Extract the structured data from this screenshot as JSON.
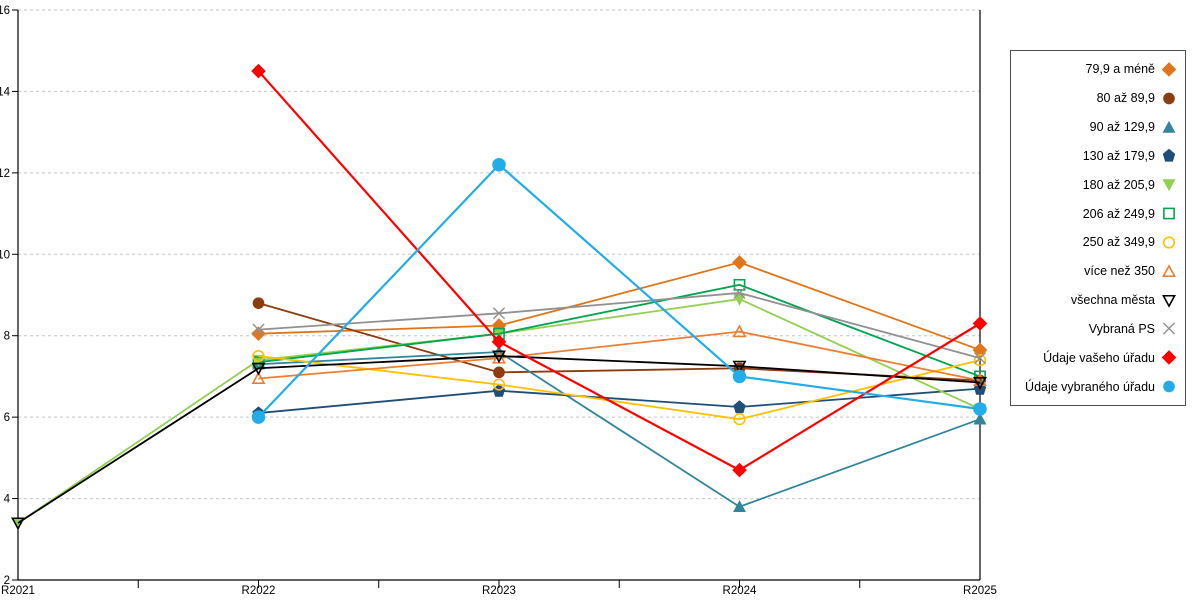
{
  "chart_data": {
    "type": "line",
    "title": "",
    "xlabel": "",
    "ylabel": "",
    "x": [
      "R2021",
      "R2022",
      "R2023",
      "R2024",
      "R2025"
    ],
    "ylim": [
      2,
      16
    ],
    "ytick_step": 2,
    "grid": "horizontal-dashed",
    "gridline_color": "#C6C6C6",
    "axis_color": "#000000",
    "legend_position": "right",
    "series": [
      {
        "name": "79,9 a méně",
        "marker": "diamond",
        "filled": true,
        "color": "#E0751A",
        "values": [
          null,
          8.05,
          8.25,
          9.8,
          7.65
        ]
      },
      {
        "name": "80 až 89,9",
        "marker": "circle",
        "filled": true,
        "color": "#8C3D10",
        "values": [
          null,
          8.8,
          7.1,
          7.2,
          6.9
        ]
      },
      {
        "name": "90 až 129,9",
        "marker": "triangle-up",
        "filled": true,
        "color": "#31859C",
        "values": [
          null,
          7.3,
          7.6,
          3.8,
          5.95
        ]
      },
      {
        "name": "130 až 179,9",
        "marker": "pentagon",
        "filled": true,
        "color": "#1F4E79",
        "values": [
          null,
          6.1,
          6.65,
          6.25,
          6.7
        ]
      },
      {
        "name": "180 až 205,9",
        "marker": "triangle-down",
        "filled": true,
        "color": "#92D050",
        "values": [
          3.4,
          7.4,
          8.05,
          8.9,
          6.2
        ]
      },
      {
        "name": "206 až 249,9",
        "marker": "square",
        "filled": false,
        "color": "#00A550",
        "values": [
          null,
          7.35,
          8.05,
          9.25,
          7.0
        ]
      },
      {
        "name": "250 až 349,9",
        "marker": "circle",
        "filled": false,
        "color": "#FFC000",
        "values": [
          null,
          7.5,
          6.8,
          5.95,
          7.4
        ]
      },
      {
        "name": "více než 350",
        "marker": "triangle-up",
        "filled": false,
        "color": "#ED7D31",
        "values": [
          null,
          6.95,
          7.45,
          8.1,
          6.9
        ]
      },
      {
        "name": "všechna města",
        "marker": "triangle-down",
        "filled": false,
        "color": "#000000",
        "values": [
          3.4,
          7.2,
          7.5,
          7.25,
          6.85
        ]
      },
      {
        "name": "Vybraná PS",
        "marker": "x",
        "filled": false,
        "color": "#919191",
        "values": [
          null,
          8.15,
          8.55,
          9.05,
          7.45
        ]
      },
      {
        "name": "Údaje vašeho úřadu",
        "marker": "diamond",
        "filled": true,
        "color": "#FF0000",
        "values": [
          null,
          14.5,
          7.85,
          4.7,
          8.3
        ]
      },
      {
        "name": "Údaje vybraného úřadu",
        "marker": "circle",
        "filled": true,
        "color": "#22ADE8",
        "values": [
          null,
          6.0,
          12.2,
          7.0,
          6.2
        ]
      }
    ]
  }
}
